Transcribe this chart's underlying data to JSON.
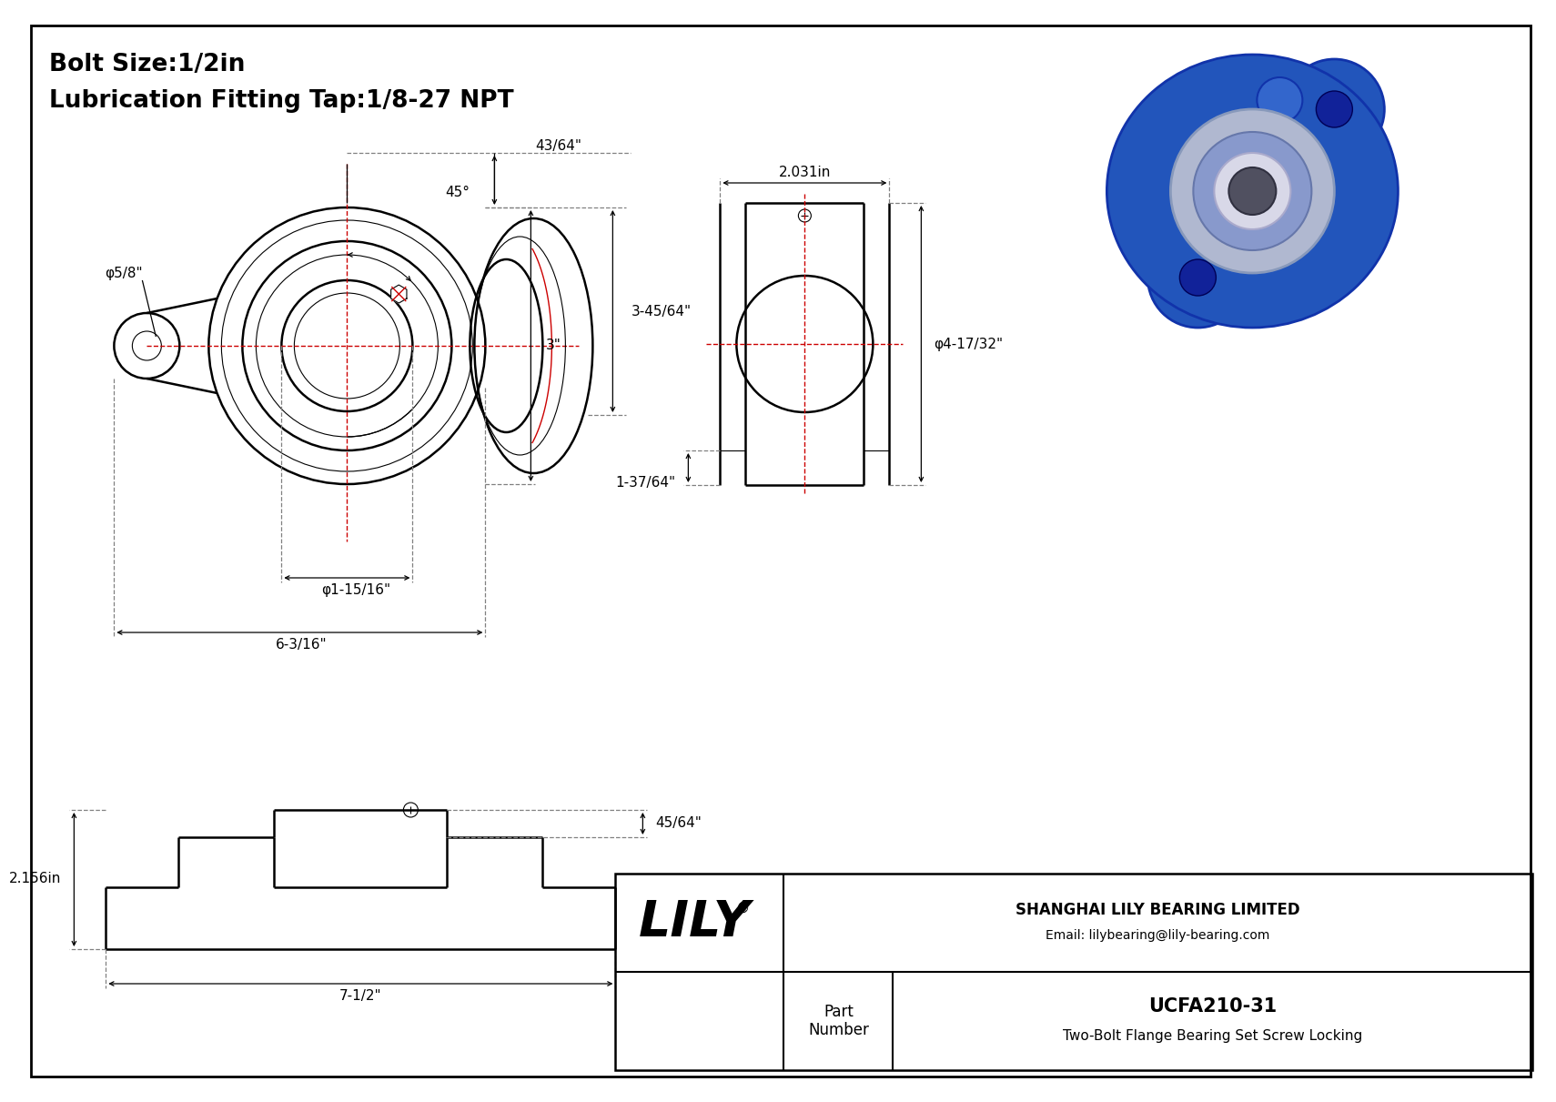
{
  "bg_color": "#ffffff",
  "border_color": "#000000",
  "red_color": "#cc0000",
  "title_line1": "Bolt Size:1/2in",
  "title_line2": "Lubrication Fitting Tap:1/8-27 NPT",
  "company_name": "SHANGHAI LILY BEARING LIMITED",
  "company_email": "Email: lilybearing@lily-bearing.com",
  "part_label": "Part\nNumber",
  "part_number": "UCFA210-31",
  "part_desc": "Two-Bolt Flange Bearing Set Screw Locking",
  "dim_bolt_hole": "φ5/8\"",
  "dim_shaft": "φ1-15/16\"",
  "dim_width_front": "6-3/16\"",
  "dim_height_front": "3\"",
  "dim_depth": "3-45/64\"",
  "dim_top": "43/64\"",
  "dim_angle": "45°",
  "dim_side_width": "2.031in",
  "dim_side_height": "φ4-17/32\"",
  "dim_side_bot": "1-37/64\"",
  "dim_bot_height": "2.156in",
  "dim_bot_width": "7-1/2\"",
  "dim_bot_top": "45/64\""
}
